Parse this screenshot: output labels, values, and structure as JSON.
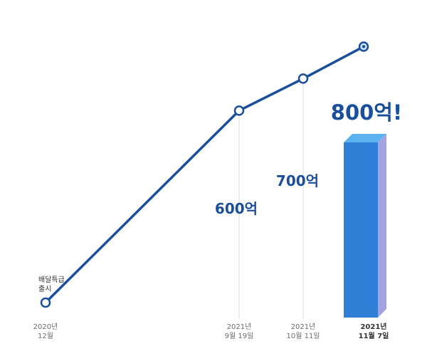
{
  "chart_data": {
    "type": "line",
    "title": "",
    "xlabel": "",
    "ylabel": "",
    "x": [
      {
        "date": "2020-12",
        "label_lines": [
          "2020년",
          "12월"
        ]
      },
      {
        "date": "2021-09-19",
        "label_lines": [
          "2021년",
          "9월 19일"
        ]
      },
      {
        "date": "2021-10-11",
        "label_lines": [
          "2021년",
          "10월 11일"
        ]
      },
      {
        "date": "2021-11-07",
        "label_lines": [
          "2021년",
          "11월 7일"
        ]
      }
    ],
    "series": [
      {
        "values": [
          0,
          600,
          700,
          800
        ],
        "data_labels": [
          "",
          "600억",
          "700억",
          "800억!"
        ],
        "color": "#1a4f9c"
      }
    ],
    "highlight": {
      "index": 3,
      "bar_color": "#2f7fd6",
      "bar_top_color": "#5cb2ee",
      "bar_side_color": "#5a56c8"
    },
    "annotations": [
      {
        "at_index": 0,
        "text_lines": [
          "배달특급",
          "출시"
        ]
      }
    ],
    "ylim": [
      0,
      850
    ],
    "grid": false,
    "legend": "none",
    "guide_line_color": "#dddddd"
  }
}
